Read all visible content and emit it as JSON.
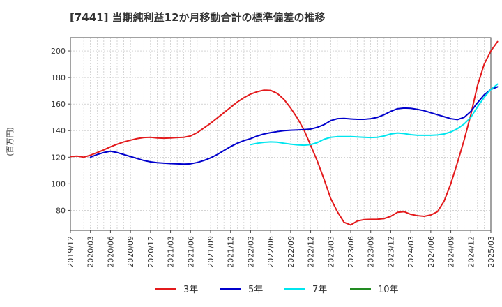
{
  "chart_data": {
    "type": "line",
    "title": "[7441]  当期純利益12か月移動合計の標準偏差の推移",
    "ylabel": "(百万円)",
    "xlabel": "",
    "ylim": [
      65,
      210
    ],
    "yticks": [
      80,
      100,
      120,
      140,
      160,
      180,
      200
    ],
    "xticks": [
      "2019/12",
      "2020/03",
      "2020/06",
      "2020/09",
      "2020/12",
      "2021/03",
      "2021/06",
      "2021/09",
      "2021/12",
      "2022/03",
      "2022/06",
      "2022/09",
      "2022/12",
      "2023/03",
      "2023/06",
      "2023/09",
      "2023/12",
      "2024/03",
      "2024/06",
      "2024/09",
      "2024/12",
      "2025/03"
    ],
    "grid": true,
    "legend_position": "bottom",
    "series": [
      {
        "name": "3年",
        "color": "#e31a1c",
        "start_index": 0,
        "values": [
          120.5,
          120.8,
          120.0,
          121.5,
          123.5,
          125.5,
          127.8,
          129.8,
          131.5,
          132.8,
          134.0,
          134.8,
          135.0,
          134.5,
          134.3,
          134.5,
          134.8,
          135.0,
          136.0,
          138.5,
          142.0,
          145.5,
          149.5,
          153.5,
          157.5,
          161.5,
          164.8,
          167.5,
          169.3,
          170.5,
          170.3,
          168.0,
          163.5,
          157.0,
          149.5,
          140.5,
          129.0,
          117.0,
          103.5,
          89.0,
          79.0,
          71.0,
          69.0,
          72.0,
          73.0,
          73.2,
          73.3,
          73.8,
          75.5,
          78.5,
          79.0,
          77.0,
          76.0,
          75.5,
          76.5,
          79.0,
          87.0,
          100.0,
          116.0,
          133.0,
          152.0,
          174.0,
          190.0,
          200.0,
          207.0
        ]
      },
      {
        "name": "5年",
        "color": "#0000cc",
        "start_index": 3,
        "values": [
          120.0,
          122.0,
          123.5,
          124.5,
          123.5,
          122.0,
          120.5,
          119.0,
          117.5,
          116.5,
          115.8,
          115.5,
          115.2,
          115.0,
          114.8,
          115.0,
          116.0,
          117.5,
          119.5,
          122.0,
          125.0,
          128.0,
          130.5,
          132.5,
          134.0,
          136.0,
          137.5,
          138.5,
          139.3,
          140.0,
          140.3,
          140.5,
          140.8,
          141.2,
          142.5,
          144.5,
          147.5,
          149.0,
          149.2,
          148.8,
          148.5,
          148.5,
          149.0,
          150.0,
          152.0,
          154.5,
          156.5,
          157.0,
          156.8,
          156.0,
          155.0,
          153.5,
          152.0,
          150.5,
          149.0,
          148.3,
          150.0,
          154.5,
          161.0,
          167.0,
          171.0,
          173.0
        ]
      },
      {
        "name": "7年",
        "color": "#00e5ee",
        "start_index": 27,
        "values": [
          129.5,
          130.5,
          131.2,
          131.5,
          131.3,
          130.5,
          129.8,
          129.3,
          129.0,
          129.5,
          131.0,
          133.5,
          135.0,
          135.5,
          135.5,
          135.5,
          135.3,
          135.0,
          134.8,
          135.0,
          136.0,
          137.5,
          138.2,
          137.8,
          137.0,
          136.5,
          136.5,
          136.5,
          136.8,
          137.5,
          139.0,
          141.5,
          145.0,
          150.0,
          158.0,
          165.0,
          171.0,
          175.0
        ]
      },
      {
        "name": "10年",
        "color": "#228b22",
        "start_index": 0,
        "values": []
      }
    ]
  }
}
